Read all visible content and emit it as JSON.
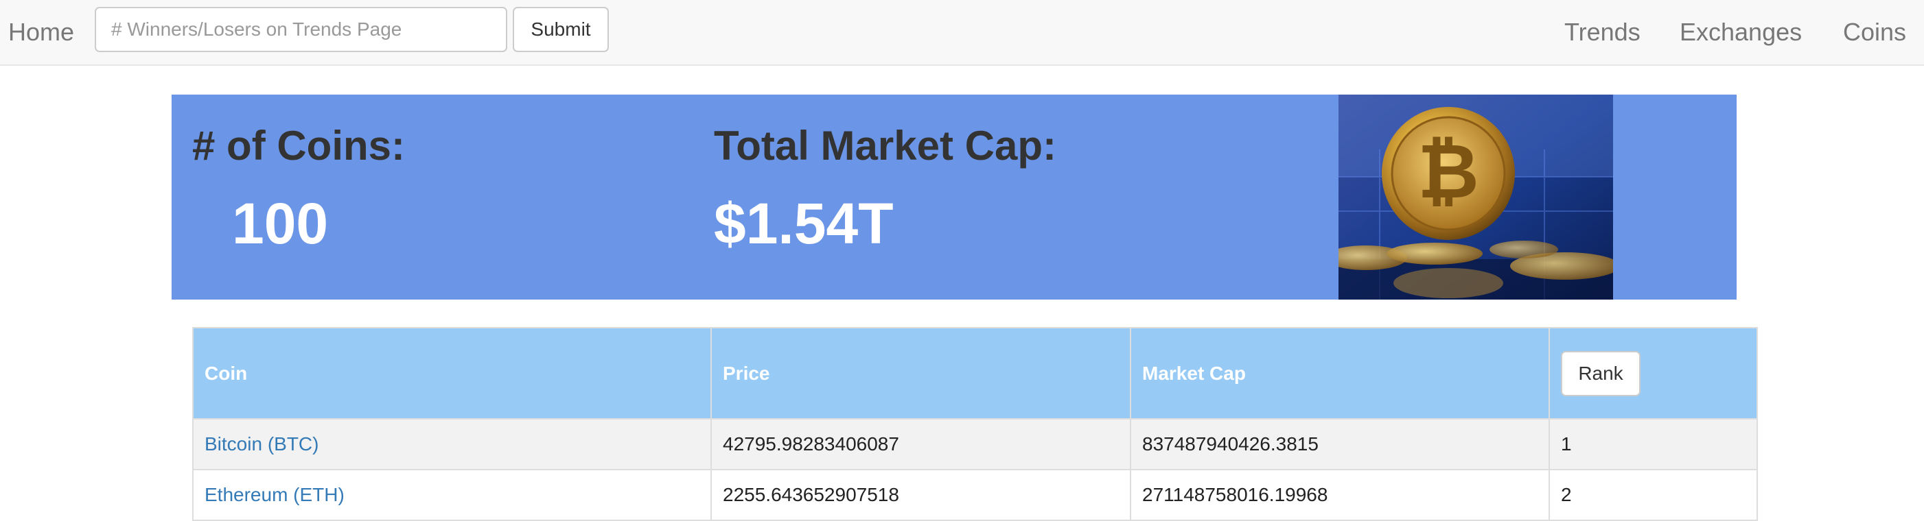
{
  "navbar": {
    "home_label": "Home",
    "winners_input": {
      "value": "",
      "placeholder": "# Winners/Losers on Trends Page"
    },
    "submit_label": "Submit",
    "links": {
      "trends": "Trends",
      "exchanges": "Exchanges",
      "coins": "Coins"
    }
  },
  "summary": {
    "coins_label": "# of Coins:",
    "coins_value": "100",
    "market_cap_label": "Total Market Cap:",
    "market_cap_value": "$1.54T",
    "image_icon": "bitcoin-coin-photo"
  },
  "table": {
    "headers": {
      "coin": "Coin",
      "price": "Price",
      "market_cap": "Market Cap",
      "rank_button": "Rank"
    },
    "rows": [
      {
        "coin": "Bitcoin (BTC)",
        "price": "42795.98283406087",
        "market_cap": "837487940426.3815",
        "rank": "1"
      },
      {
        "coin": "Ethereum (ETH)",
        "price": "2255.643652907518",
        "market_cap": "271148758016.19968",
        "rank": "2"
      }
    ]
  },
  "colors": {
    "banner": "#6b95e6",
    "table_header": "#97cbf5",
    "link": "#337ab7"
  }
}
